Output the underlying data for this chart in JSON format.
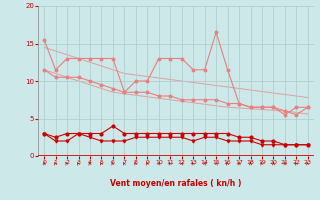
{
  "x": [
    0,
    1,
    2,
    3,
    4,
    5,
    6,
    7,
    8,
    9,
    10,
    11,
    12,
    13,
    14,
    15,
    16,
    17,
    18,
    19,
    20,
    21,
    22,
    23
  ],
  "line_rafales": [
    15.5,
    11.5,
    13.0,
    13.0,
    13.0,
    13.0,
    13.0,
    8.5,
    10.0,
    10.0,
    13.0,
    13.0,
    13.0,
    11.5,
    11.5,
    16.5,
    11.5,
    7.0,
    6.5,
    6.5,
    6.5,
    5.5,
    6.5,
    6.5
  ],
  "line_moy": [
    11.5,
    10.5,
    10.5,
    10.5,
    10.0,
    9.5,
    9.0,
    8.5,
    8.5,
    8.5,
    8.0,
    8.0,
    7.5,
    7.5,
    7.5,
    7.5,
    7.0,
    7.0,
    6.5,
    6.5,
    6.5,
    6.0,
    5.5,
    6.5
  ],
  "line_max_red": [
    3.0,
    2.5,
    3.0,
    3.0,
    3.0,
    3.0,
    4.0,
    3.0,
    3.0,
    3.0,
    3.0,
    3.0,
    3.0,
    3.0,
    3.0,
    3.0,
    3.0,
    2.5,
    2.5,
    2.0,
    2.0,
    1.5,
    1.5,
    1.5
  ],
  "line_min_red": [
    3.0,
    2.0,
    2.0,
    3.0,
    2.5,
    2.0,
    2.0,
    2.0,
    2.5,
    2.5,
    2.5,
    2.5,
    2.5,
    2.0,
    2.5,
    2.5,
    2.0,
    2.0,
    2.0,
    1.5,
    1.5,
    1.5,
    1.5,
    1.5
  ],
  "line_trend_lo": [
    11.5,
    11.0,
    10.5,
    10.0,
    9.5,
    9.0,
    8.5,
    8.3,
    8.1,
    7.9,
    7.7,
    7.5,
    7.3,
    7.1,
    6.9,
    6.7,
    6.5,
    6.4,
    6.3,
    6.2,
    6.1,
    6.0,
    5.8,
    5.6
  ],
  "line_trend_hi": [
    14.5,
    14.0,
    13.5,
    13.0,
    12.5,
    12.0,
    11.5,
    11.0,
    10.8,
    10.6,
    10.4,
    10.2,
    10.0,
    9.8,
    9.6,
    9.4,
    9.2,
    9.0,
    8.8,
    8.6,
    8.4,
    8.2,
    8.0,
    7.8
  ],
  "bg_color": "#cce8e8",
  "grid_color": "#aacccc",
  "color_pink": "#e88080",
  "color_red": "#cc0000",
  "xlabel": "Vent moyen/en rafales ( kn/h )",
  "xlabel_color": "#cc0000",
  "ylim": [
    0,
    20
  ],
  "xlim": [
    -0.5,
    23.5
  ],
  "yticks": [
    0,
    5,
    10,
    15,
    20
  ],
  "xticks": [
    0,
    1,
    2,
    3,
    4,
    5,
    6,
    7,
    8,
    9,
    10,
    11,
    12,
    13,
    14,
    15,
    16,
    17,
    18,
    19,
    20,
    21,
    22,
    23
  ],
  "arrow_dirs": [
    180,
    225,
    270,
    225,
    225,
    225,
    225,
    225,
    225,
    225,
    135,
    225,
    135,
    225,
    135,
    135,
    225,
    180,
    180,
    225,
    180,
    180,
    225,
    225
  ]
}
